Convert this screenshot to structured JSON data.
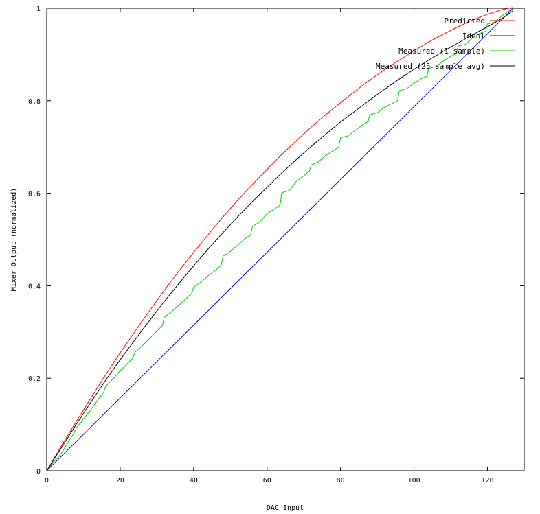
{
  "chart_data": {
    "type": "line",
    "title": "",
    "xlabel": "DAC Input",
    "ylabel": "Mixer Output (normalized)",
    "xlim": [
      0,
      130
    ],
    "ylim": [
      0,
      1
    ],
    "x_ticks": [
      0,
      20,
      40,
      60,
      80,
      100,
      120
    ],
    "x_tick_labels": [
      "0",
      "20",
      "40",
      "60",
      "80",
      "100",
      "120"
    ],
    "y_ticks": [
      0,
      0.2,
      0.4,
      0.6,
      0.8,
      1
    ],
    "y_tick_labels": [
      "0",
      "0.2",
      "0.4",
      "0.6",
      "0.8",
      "1"
    ],
    "grid": false,
    "legend_position": "top-right",
    "series": [
      {
        "name": "Predicted",
        "color": "#ff0000",
        "x": [
          0,
          4,
          8,
          12,
          16,
          20,
          24,
          28,
          32,
          36,
          40,
          44,
          48,
          52,
          56,
          60,
          64,
          68,
          72,
          76,
          80,
          84,
          88,
          92,
          96,
          100,
          104,
          108,
          112,
          116,
          120,
          124,
          127
        ],
        "y": [
          0,
          0.054,
          0.106,
          0.157,
          0.207,
          0.255,
          0.301,
          0.346,
          0.39,
          0.432,
          0.472,
          0.511,
          0.549,
          0.585,
          0.619,
          0.652,
          0.684,
          0.714,
          0.743,
          0.77,
          0.796,
          0.821,
          0.845,
          0.867,
          0.888,
          0.908,
          0.927,
          0.944,
          0.96,
          0.975,
          0.987,
          0.997,
          1.002
        ]
      },
      {
        "name": "Ideal",
        "color": "#0000ff",
        "x": [
          0,
          127
        ],
        "y": [
          0,
          1
        ]
      },
      {
        "name": "Measured (1 sample)",
        "color": "#00cc00",
        "x": [
          0,
          2,
          4,
          6,
          7.5,
          8,
          10,
          12,
          14,
          15.5,
          16,
          18,
          20,
          22,
          23.5,
          24,
          26,
          28,
          30,
          31.5,
          32,
          34,
          36,
          38,
          39.5,
          40,
          42,
          44,
          46,
          47.5,
          48,
          50,
          52,
          54,
          55.5,
          56,
          58,
          60,
          62,
          63.5,
          64,
          66,
          68,
          70,
          71.5,
          72,
          74,
          76,
          78,
          79.5,
          80,
          82,
          84,
          86,
          87.5,
          88,
          90,
          92,
          94,
          95.5,
          96,
          98,
          100,
          102,
          103.5,
          104,
          106,
          108,
          110,
          111.5,
          112,
          114,
          116,
          118,
          119.5,
          120,
          122,
          124,
          126,
          127
        ],
        "y": [
          0,
          0.02,
          0.038,
          0.064,
          0.082,
          0.092,
          0.112,
          0.132,
          0.154,
          0.17,
          0.182,
          0.198,
          0.216,
          0.232,
          0.244,
          0.256,
          0.27,
          0.286,
          0.302,
          0.314,
          0.332,
          0.344,
          0.358,
          0.373,
          0.384,
          0.397,
          0.408,
          0.422,
          0.434,
          0.444,
          0.464,
          0.474,
          0.488,
          0.502,
          0.51,
          0.528,
          0.538,
          0.556,
          0.566,
          0.574,
          0.601,
          0.606,
          0.626,
          0.638,
          0.648,
          0.661,
          0.668,
          0.682,
          0.692,
          0.7,
          0.72,
          0.724,
          0.736,
          0.748,
          0.755,
          0.77,
          0.774,
          0.786,
          0.794,
          0.8,
          0.822,
          0.826,
          0.838,
          0.848,
          0.853,
          0.87,
          0.874,
          0.886,
          0.896,
          0.902,
          0.918,
          0.922,
          0.936,
          0.946,
          0.95,
          0.966,
          0.97,
          0.984,
          0.995,
          1.0
        ]
      },
      {
        "name": "Measured (25 sample avg)",
        "color": "#000000",
        "x": [
          0,
          4,
          8,
          12,
          16,
          20,
          24,
          28,
          32,
          36,
          40,
          44,
          48,
          52,
          56,
          60,
          64,
          68,
          72,
          76,
          80,
          84,
          88,
          92,
          96,
          100,
          104,
          108,
          112,
          116,
          120,
          124,
          127
        ],
        "y": [
          0,
          0.05,
          0.1,
          0.148,
          0.195,
          0.24,
          0.283,
          0.325,
          0.366,
          0.405,
          0.443,
          0.48,
          0.515,
          0.549,
          0.582,
          0.613,
          0.644,
          0.673,
          0.701,
          0.728,
          0.754,
          0.778,
          0.802,
          0.825,
          0.847,
          0.868,
          0.888,
          0.907,
          0.925,
          0.943,
          0.96,
          0.978,
          0.995
        ]
      }
    ]
  }
}
